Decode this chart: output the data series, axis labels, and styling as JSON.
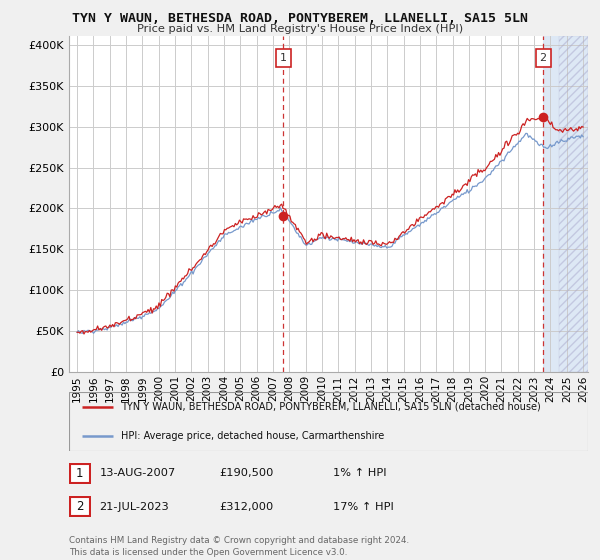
{
  "title": "TYN Y WAUN, BETHESDA ROAD, PONTYBEREM, LLANELLI, SA15 5LN",
  "subtitle": "Price paid vs. HM Land Registry's House Price Index (HPI)",
  "ylabel_ticks": [
    "£0",
    "£50K",
    "£100K",
    "£150K",
    "£200K",
    "£250K",
    "£300K",
    "£350K",
    "£400K"
  ],
  "ytick_values": [
    0,
    50000,
    100000,
    150000,
    200000,
    250000,
    300000,
    350000,
    400000
  ],
  "ylim": [
    0,
    410000
  ],
  "xlim_start": 1994.5,
  "xlim_end": 2026.3,
  "background_color": "#f0f0f0",
  "plot_bg_color": "#ffffff",
  "plot_bg_color_right": "#dde8f5",
  "grid_color": "#cccccc",
  "hpi_line_color": "#7799cc",
  "price_line_color": "#cc2222",
  "dashed_line_color": "#cc3333",
  "marker1_year": 2007.62,
  "marker1_price": 190500,
  "marker2_year": 2023.55,
  "marker2_price": 312000,
  "legend_label_red": "TYN Y WAUN, BETHESDA ROAD, PONTYBEREM, LLANELLI, SA15 5LN (detached house)",
  "legend_label_blue": "HPI: Average price, detached house, Carmarthenshire",
  "annotation1_date": "13-AUG-2007",
  "annotation1_price": "£190,500",
  "annotation1_hpi": "1% ↑ HPI",
  "annotation2_date": "21-JUL-2023",
  "annotation2_price": "£312,000",
  "annotation2_hpi": "17% ↑ HPI",
  "footer": "Contains HM Land Registry data © Crown copyright and database right 2024.\nThis data is licensed under the Open Government Licence v3.0."
}
